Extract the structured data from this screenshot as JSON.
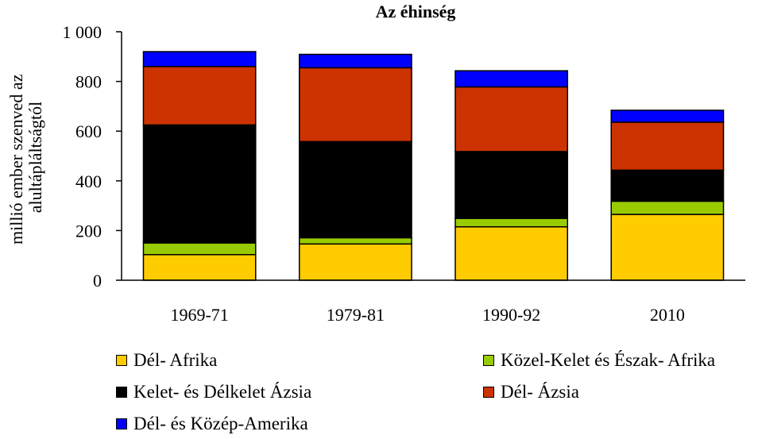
{
  "chart_data": {
    "type": "bar",
    "stacked": true,
    "title": "Az éhinség",
    "ylabel": "millió ember szenved az alultápláltságtól",
    "xlabel": "",
    "ylim": [
      0,
      1000
    ],
    "yticks": [
      0,
      200,
      400,
      600,
      800,
      1000
    ],
    "ytick_labels": [
      "0",
      "200",
      "400",
      "600",
      "800",
      "1 000"
    ],
    "categories": [
      "1969-71",
      "1979-81",
      "1990-92",
      "2010"
    ],
    "series": [
      {
        "name": "Dél- Afrika",
        "color": "#FFCC00",
        "values": [
          103,
          146,
          215,
          265
        ]
      },
      {
        "name": "Közel-Kelet és Észak- Afrika",
        "color": "#99CC00",
        "values": [
          47,
          25,
          34,
          53
        ]
      },
      {
        "name": "Kelet- és Délkelet Ázsia",
        "color": "#000000",
        "values": [
          475,
          387,
          269,
          125
        ]
      },
      {
        "name": "Dél- Ázsia",
        "color": "#CC3300",
        "values": [
          235,
          297,
          260,
          193
        ]
      },
      {
        "name": "Dél- és Közép-Amerika",
        "color": "#0000FF",
        "values": [
          60,
          54,
          65,
          48
        ]
      }
    ],
    "grid": false,
    "legend_position": "bottom"
  }
}
